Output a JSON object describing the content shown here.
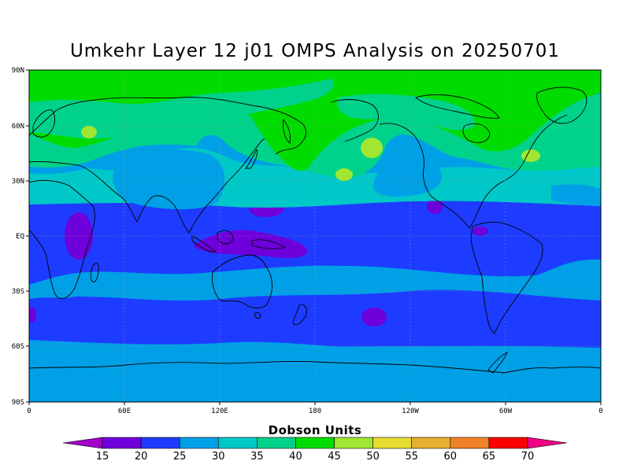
{
  "title": "Umkehr Layer 12 j01 OMPS Analysis on 20250701",
  "map": {
    "lat_ticks": [
      "90N",
      "60N",
      "30N",
      "EQ",
      "30S",
      "60S",
      "90S"
    ],
    "lon_ticks": [
      "0",
      "60E",
      "120E",
      "180",
      "120W",
      "60W",
      "0"
    ],
    "grid": "dotted",
    "projection": "cylindrical-equidistant",
    "features": [
      "ozone-field-contours",
      "coastlines"
    ],
    "zonal_pattern": [
      {
        "band": "north-polar",
        "range": "40-45"
      },
      {
        "band": "north-mid",
        "range": "35-40",
        "maxima": [
          {
            "region": "north-pacific",
            "range": "45-50"
          },
          {
            "region": "north-atlantic",
            "range": "45-50"
          },
          {
            "region": "central-asia",
            "range": "45-50"
          }
        ]
      },
      {
        "band": "north-subtropics",
        "range": "30-35"
      },
      {
        "band": "tropics",
        "range": "20-25",
        "minima": [
          {
            "region": "tibet",
            "range": "15-20"
          },
          {
            "region": "africa",
            "range": "15-20"
          },
          {
            "region": "maritime-continent",
            "range": "15-20"
          }
        ]
      },
      {
        "band": "south-subtropics",
        "range": "25-30"
      },
      {
        "band": "south-mid",
        "range": "20-25",
        "minima": [
          {
            "region": "south-pacific",
            "range": "15-20"
          }
        ]
      },
      {
        "band": "south-polar",
        "range": "25-30"
      }
    ]
  },
  "colorbar": {
    "label": "Dobson Units",
    "levels": [
      "15",
      "20",
      "25",
      "30",
      "35",
      "40",
      "45",
      "50",
      "55",
      "60",
      "65",
      "70"
    ],
    "colors": [
      "#a000c8",
      "#6e00dc",
      "#1e3cff",
      "#00a0e6",
      "#00c8c8",
      "#00d28c",
      "#00dc00",
      "#a0e632",
      "#e6dc32",
      "#e6af2d",
      "#f08228",
      "#fa0000",
      "#f00082"
    ]
  }
}
